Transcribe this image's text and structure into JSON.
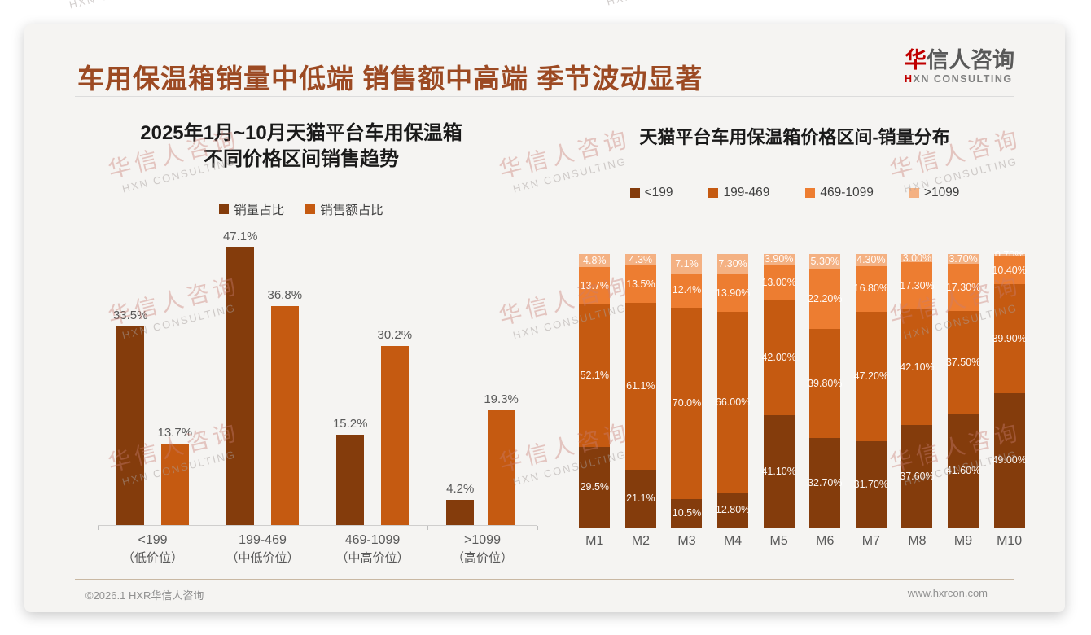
{
  "header": {
    "title": "车用保温箱销量中低端 销售额中高端 季节波动显著",
    "logo_cn_first": "华",
    "logo_cn_rest": "信人咨询",
    "logo_en_first": "H",
    "logo_en_rest": "XN CONSULTING"
  },
  "watermark": {
    "line1": "华信人咨询",
    "line2": "HXN CONSULTING"
  },
  "footer": {
    "left": "©2026.1 HXR华信人咨询",
    "right": "www.hxrcon.com"
  },
  "colors": {
    "title_brown": "#9C4A23",
    "dark_brown": "#843C0C",
    "mid_orange": "#C55A11",
    "orange": "#ED7D31",
    "light_orange": "#F4B183"
  },
  "chart_data": [
    {
      "type": "bar",
      "title_line1": "2025年1月~10月天猫平台车用保温箱",
      "title_line2": "不同价格区间销售趋势",
      "categories": [
        "<199",
        "199-469",
        "469-1099",
        ">1099"
      ],
      "category_sublabels": [
        "（低价位）",
        "（中低价位）",
        "（中高价位）",
        "（高价位）"
      ],
      "ylim": [
        0,
        50
      ],
      "grid": false,
      "legend_position": "top",
      "series": [
        {
          "name": "销量占比",
          "color": "#843C0C",
          "values": [
            33.5,
            47.1,
            15.2,
            4.2
          ],
          "labels": [
            "33.5%",
            "47.1%",
            "15.2%",
            "4.2%"
          ]
        },
        {
          "name": "销售额占比",
          "color": "#C55A11",
          "values": [
            13.7,
            36.8,
            30.2,
            19.3
          ],
          "labels": [
            "13.7%",
            "36.8%",
            "30.2%",
            "19.3%"
          ]
        }
      ]
    },
    {
      "type": "bar",
      "subtype": "stacked-100",
      "title": "天猫平台车用保温箱价格区间-销量分布",
      "categories": [
        "M1",
        "M2",
        "M3",
        "M4",
        "M5",
        "M6",
        "M7",
        "M8",
        "M9",
        "M10"
      ],
      "ylim": [
        0,
        100
      ],
      "grid": false,
      "legend_position": "top",
      "series": [
        {
          "name": "<199",
          "color": "#843C0C",
          "values": [
            29.5,
            21.1,
            10.5,
            12.8,
            41.1,
            32.7,
            31.7,
            37.6,
            41.6,
            49.0
          ],
          "labels": [
            "29.5%",
            "21.1%",
            "10.5%",
            "12.80%",
            "41.10%",
            "32.70%",
            "31.70%",
            "37.60%",
            "41.60%",
            "49.00%"
          ]
        },
        {
          "name": "199-469",
          "color": "#C55A11",
          "values": [
            52.1,
            61.1,
            70.0,
            66.0,
            42.0,
            39.8,
            47.2,
            42.1,
            37.5,
            39.9
          ],
          "labels": [
            "52.1%",
            "61.1%",
            "70.0%",
            "66.00%",
            "42.00%",
            "39.80%",
            "47.20%",
            "42.10%",
            "37.50%",
            "39.90%"
          ]
        },
        {
          "name": "469-1099",
          "color": "#ED7D31",
          "values": [
            13.7,
            13.5,
            12.4,
            13.9,
            13.0,
            22.2,
            16.8,
            17.3,
            17.3,
            10.4
          ],
          "labels": [
            "13.7%",
            "13.5%",
            "12.4%",
            "13.90%",
            "13.00%",
            "22.20%",
            "16.80%",
            "17.30%",
            "17.30%",
            "10.40%"
          ]
        },
        {
          "name": ">1099",
          "color": "#F4B183",
          "values": [
            4.8,
            4.3,
            7.1,
            7.3,
            3.9,
            5.3,
            4.3,
            3.0,
            3.7,
            0.7
          ],
          "labels": [
            "4.8%",
            "4.3%",
            "7.1%",
            "7.30%",
            "3.90%",
            "5.30%",
            "4.30%",
            "3.00%",
            "3.70%",
            "0.70%"
          ]
        }
      ]
    }
  ]
}
